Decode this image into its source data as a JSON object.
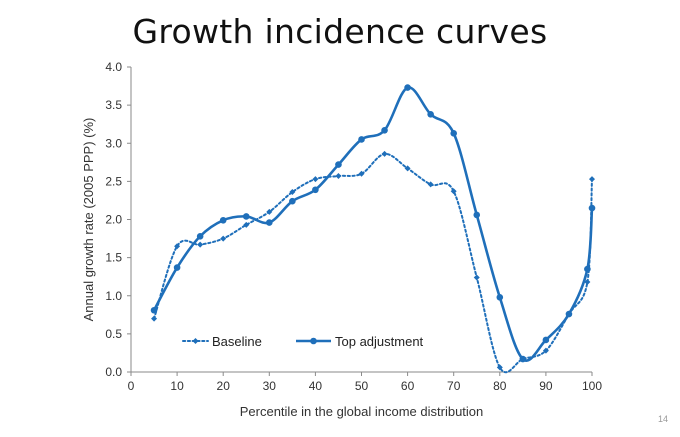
{
  "title": "Growth incidence curves",
  "slide_number": "14",
  "colors": {
    "series": "#1f6fba",
    "axis": "#8a8a8a"
  },
  "chart_data": {
    "type": "line",
    "xlabel": "Percentile in the global income distribution",
    "ylabel": "Annual growth rate (2005 PPP) (%)",
    "xlim": [
      0,
      100
    ],
    "ylim": [
      0,
      4.0
    ],
    "xticks": [
      "0",
      "10",
      "20",
      "30",
      "40",
      "50",
      "60",
      "70",
      "80",
      "90",
      "100"
    ],
    "yticks": [
      "0.0",
      "0.5",
      "1.0",
      "1.5",
      "2.0",
      "2.5",
      "3.0",
      "3.5",
      "4.0"
    ],
    "grid": false,
    "legend_position": "bottom-left",
    "series": [
      {
        "name": "Baseline",
        "style": "dotted-diamond",
        "x": [
          5,
          10,
          15,
          20,
          25,
          30,
          35,
          40,
          45,
          50,
          55,
          60,
          65,
          70,
          75,
          80,
          85,
          90,
          95,
          99,
          100
        ],
        "y": [
          0.7,
          1.65,
          1.67,
          1.75,
          1.93,
          2.1,
          2.36,
          2.53,
          2.57,
          2.6,
          2.86,
          2.67,
          2.46,
          2.37,
          1.24,
          0.06,
          0.17,
          0.28,
          0.76,
          1.18,
          2.53
        ]
      },
      {
        "name": "Top adjustment",
        "style": "solid-circle",
        "x": [
          5,
          10,
          15,
          20,
          25,
          30,
          35,
          40,
          45,
          50,
          55,
          60,
          65,
          70,
          75,
          80,
          85,
          90,
          95,
          99,
          100
        ],
        "y": [
          0.81,
          1.37,
          1.78,
          1.99,
          2.04,
          1.96,
          2.24,
          2.39,
          2.72,
          3.05,
          3.17,
          3.73,
          3.38,
          3.13,
          2.06,
          0.98,
          0.17,
          0.42,
          0.76,
          1.35,
          2.15
        ]
      }
    ]
  }
}
